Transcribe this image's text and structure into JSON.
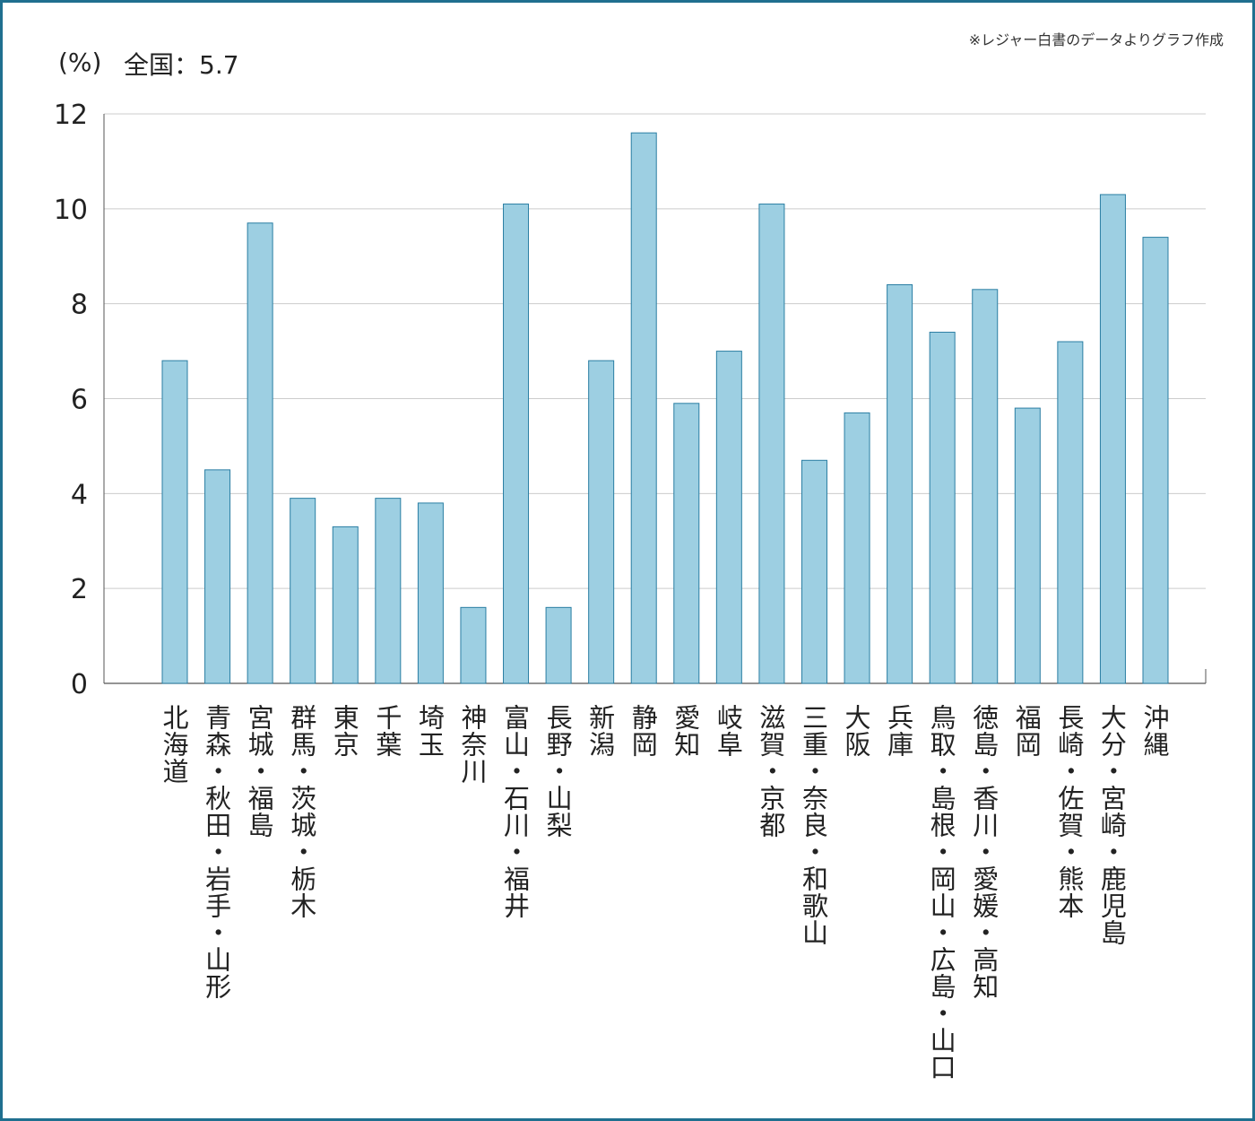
{
  "note": "※レジャー白書のデータよりグラフ作成",
  "unit_label": "(%)",
  "national_label": "全国：5.7",
  "colors": {
    "bar_fill": "#9dcfe2",
    "bar_stroke": "#2a7ea3",
    "grid": "#cccccc",
    "frame": "#1f6f8f"
  },
  "chart_data": {
    "type": "bar",
    "categories": [
      "北海道",
      "青森・秋田・岩手・山形",
      "宮城・福島",
      "群馬・茨城・栃木",
      "東京",
      "千葉",
      "埼玉",
      "神奈川",
      "富山・石川・福井",
      "長野・山梨",
      "新潟",
      "静岡",
      "愛知",
      "岐阜",
      "滋賀・京都",
      "三重・奈良・和歌山",
      "大阪",
      "兵庫",
      "鳥取・島根・岡山・広島・山口",
      "徳島・香川・愛媛・高知",
      "福岡",
      "長崎・佐賀・熊本",
      "大分・宮崎・鹿児島",
      "沖縄"
    ],
    "values": [
      6.8,
      4.5,
      9.7,
      3.9,
      3.3,
      3.9,
      3.8,
      1.6,
      10.1,
      1.6,
      6.8,
      11.6,
      5.9,
      7.0,
      10.1,
      4.7,
      5.7,
      8.4,
      7.4,
      8.3,
      5.8,
      7.2,
      10.3,
      9.4
    ],
    "ylim": [
      0,
      12
    ],
    "yticks": [
      0,
      2,
      4,
      6,
      8,
      10,
      12
    ],
    "grid": true,
    "ylabel": "(%)"
  }
}
